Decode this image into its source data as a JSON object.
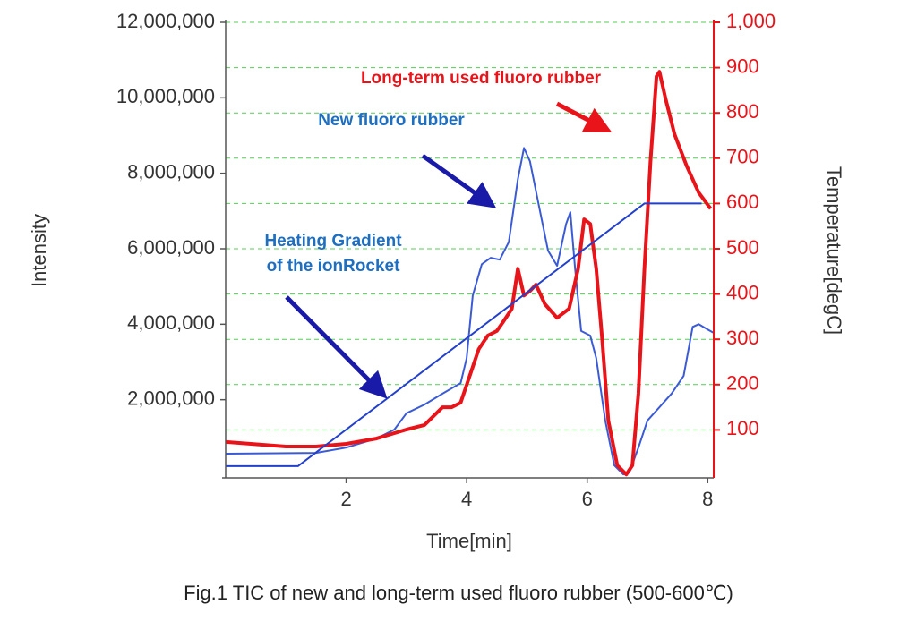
{
  "chart_data": {
    "type": "line",
    "caption": "Fig.1 TIC of new and long-term used fluoro rubber (500-600℃)",
    "x_label": "Time[min]",
    "y_label": "Intensity",
    "y2_label": "Temperature[degC]",
    "xlim": [
      0,
      8.1
    ],
    "xticks": [
      2,
      4,
      6,
      8
    ],
    "ylim": [
      0,
      12000000
    ],
    "yticks": [
      {
        "value": 2000000,
        "label": "2,000,000"
      },
      {
        "value": 4000000,
        "label": "4,000,000"
      },
      {
        "value": 6000000,
        "label": "6,000,000"
      },
      {
        "value": 8000000,
        "label": "8,000,000"
      },
      {
        "value": 10000000,
        "label": "10,000,000"
      },
      {
        "value": 12000000,
        "label": "12,000,000"
      }
    ],
    "y2lim": [
      0,
      1000
    ],
    "y2ticks": [
      100,
      200,
      300,
      400,
      500,
      600,
      700,
      800,
      900,
      {
        "value": 1000,
        "label": "1,000"
      }
    ],
    "y2_color": "#e8141a",
    "grid": true,
    "grid_color": "#55cc55",
    "series": [
      {
        "color": "#3b5bd6",
        "width": 2,
        "x": [
          0,
          1.5,
          2,
          2.5,
          2.8,
          3.0,
          3.3,
          3.6,
          3.9,
          4.0,
          4.1,
          4.25,
          4.4,
          4.55,
          4.7,
          4.85,
          4.95,
          5.05,
          5.2,
          5.35,
          5.5,
          5.65,
          5.72,
          5.8,
          5.9,
          6.05,
          6.15,
          6.3,
          6.45,
          6.6,
          6.7,
          6.85,
          7.0,
          7.2,
          7.4,
          7.6,
          7.75,
          7.85,
          8.0,
          8.1
        ],
        "values": [
          570000,
          590000,
          730000,
          970000,
          1210000,
          1640000,
          1870000,
          2160000,
          2440000,
          3100000,
          4760000,
          5590000,
          5760000,
          5710000,
          6180000,
          7840000,
          8670000,
          8320000,
          7130000,
          5950000,
          5550000,
          6660000,
          6970000,
          5470000,
          3820000,
          3700000,
          3100000,
          1450000,
          260000,
          20000,
          70000,
          730000,
          1450000,
          1800000,
          2160000,
          2630000,
          3930000,
          4000000,
          3860000,
          3770000
        ]
      },
      {
        "color": "#e8141a",
        "width": 4,
        "x": [
          0,
          1,
          1.5,
          2,
          2.5,
          3.0,
          3.3,
          3.6,
          3.75,
          3.9,
          4.05,
          4.2,
          4.35,
          4.5,
          4.6,
          4.75,
          4.85,
          4.95,
          5.05,
          5.15,
          5.3,
          5.5,
          5.7,
          5.85,
          5.95,
          6.05,
          6.15,
          6.25,
          6.35,
          6.5,
          6.65,
          6.75,
          6.85,
          6.95,
          7.05,
          7.15,
          7.2,
          7.3,
          7.45,
          7.65,
          7.85,
          8.05
        ],
        "values": [
          880000,
          760000,
          760000,
          830000,
          970000,
          1210000,
          1330000,
          1800000,
          1800000,
          1920000,
          2630000,
          3340000,
          3700000,
          3820000,
          4050000,
          4410000,
          5470000,
          4760000,
          4880000,
          5050000,
          4530000,
          4170000,
          4410000,
          5470000,
          6780000,
          6660000,
          5470000,
          3580000,
          1450000,
          260000,
          20000,
          260000,
          2160000,
          5470000,
          8320000,
          10570000,
          10690000,
          9980000,
          9030000,
          8200000,
          7490000,
          7060000
        ]
      },
      {
        "color": "#2240cc",
        "width": 2,
        "axis": "y2",
        "x": [
          0,
          1.2,
          6.95,
          7.9
        ],
        "values": [
          20,
          20,
          600,
          600
        ]
      }
    ],
    "annotations": [
      {
        "text": "Long-term used fluoro rubber",
        "color": "#e8141a"
      },
      {
        "text": "New fluoro rubber",
        "color": "#1f6fc0"
      },
      {
        "text": "Heating Gradient",
        "color": "#1f6fc0"
      },
      {
        "text": "of the ionRocket",
        "color": "#1f6fc0"
      }
    ]
  }
}
